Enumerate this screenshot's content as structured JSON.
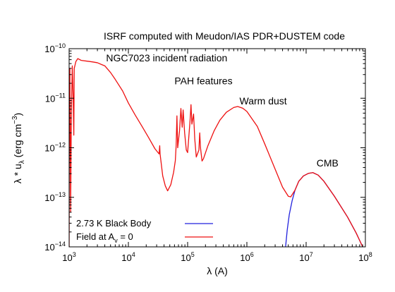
{
  "chart_data": {
    "type": "line",
    "title": "ISRF computed with Meudon/IAS PDR+DUSTEM code",
    "xlabel": "λ (A)",
    "ylabel_parts": {
      "main": "λ * u",
      "sub": "λ",
      "unit_pre": " (erg cm",
      "unit_sup": "−3",
      "unit_post": ")"
    },
    "x_scale": "log",
    "y_scale": "log",
    "xlim": [
      1000,
      100000000
    ],
    "ylim": [
      1e-14,
      1e-10
    ],
    "x_ticks": [
      {
        "value": 1000,
        "base": "10",
        "exp": "3"
      },
      {
        "value": 10000,
        "base": "10",
        "exp": "4"
      },
      {
        "value": 100000,
        "base": "10",
        "exp": "5"
      },
      {
        "value": 1000000,
        "base": "10",
        "exp": "6"
      },
      {
        "value": 10000000,
        "base": "10",
        "exp": "7"
      },
      {
        "value": 100000000,
        "base": "10",
        "exp": "8"
      }
    ],
    "y_ticks": [
      {
        "value": 1e-14,
        "base": "10",
        "exp": "−14"
      },
      {
        "value": 1e-13,
        "base": "10",
        "exp": "−13"
      },
      {
        "value": 1e-12,
        "base": "10",
        "exp": "−12"
      },
      {
        "value": 1e-11,
        "base": "10",
        "exp": "−11"
      },
      {
        "value": 1e-10,
        "base": "10",
        "exp": "−10"
      }
    ],
    "grid": false,
    "legend_position": "bottom-left",
    "series": [
      {
        "name": "2.73 K Black Body",
        "color": "#2222dd",
        "points": [
          [
            4500000,
            1e-14
          ],
          [
            4800000,
            2.2e-14
          ],
          [
            5200000,
            4.5e-14
          ],
          [
            5800000,
            8.5e-14
          ],
          [
            6500000,
            1.4e-13
          ],
          [
            7500000,
            2.1e-13
          ],
          [
            9000000,
            2.7e-13
          ],
          [
            11000000,
            3.05e-13
          ],
          [
            13000000,
            3.15e-13
          ],
          [
            16000000,
            2.8e-13
          ],
          [
            20000000,
            2.1e-13
          ],
          [
            30000000,
            1.05e-13
          ],
          [
            50000000,
            4e-14
          ],
          [
            70000000,
            1.9e-14
          ],
          [
            90000000,
            1e-14
          ]
        ]
      },
      {
        "name": "Field at A_v = 0",
        "legend_main": "Field at A",
        "legend_sub": "v",
        "legend_post": " = 0",
        "color": "#ee1111",
        "points": [
          [
            1000,
            1e-14
          ],
          [
            1010,
            4e-12
          ],
          [
            1030,
            4e-11
          ],
          [
            1060,
            5e-14
          ],
          [
            1090,
            5e-12
          ],
          [
            1130,
            4.5e-11
          ],
          [
            1170,
            1e-11
          ],
          [
            1200,
            1.8e-12
          ],
          [
            1220,
            4e-11
          ],
          [
            1300,
            5.5e-11
          ],
          [
            1400,
            6.3e-11
          ],
          [
            1600,
            5.8e-11
          ],
          [
            2000,
            5.6e-11
          ],
          [
            2500,
            5.4e-11
          ],
          [
            3000,
            5.2e-11
          ],
          [
            3500,
            4.8e-11
          ],
          [
            4000,
            4.5e-11
          ],
          [
            5000,
            3.3e-11
          ],
          [
            6000,
            2.4e-11
          ],
          [
            8000,
            1.4e-11
          ],
          [
            10000,
            8e-12
          ],
          [
            13000,
            4.6e-12
          ],
          [
            17000,
            2.7e-12
          ],
          [
            22000,
            1.6e-12
          ],
          [
            28000,
            9.6e-13
          ],
          [
            33000,
            7.5e-13
          ],
          [
            33800,
            1.1e-12
          ],
          [
            34300,
            7.5e-13
          ],
          [
            38000,
            2.7e-13
          ],
          [
            42000,
            1.7e-13
          ],
          [
            46000,
            1.35e-13
          ],
          [
            52000,
            1.8e-13
          ],
          [
            58000,
            3.2e-13
          ],
          [
            62000,
            5.5e-13
          ],
          [
            64000,
            1.1e-12
          ],
          [
            66000,
            4.4e-12
          ],
          [
            68000,
            1e-12
          ],
          [
            73000,
            2.2e-12
          ],
          [
            77000,
            6.2e-12
          ],
          [
            81000,
            2.6e-12
          ],
          [
            84000,
            5.8e-12
          ],
          [
            89000,
            2e-12
          ],
          [
            95000,
            9e-13
          ],
          [
            100000,
            8e-13
          ],
          [
            110000,
            3.6e-12
          ],
          [
            114000,
            7.4e-12
          ],
          [
            118000,
            3e-12
          ],
          [
            126000,
            4.8e-12
          ],
          [
            132000,
            1.5e-12
          ],
          [
            140000,
            6.5e-13
          ],
          [
            155000,
            9e-13
          ],
          [
            160000,
            2e-12
          ],
          [
            165000,
            1e-12
          ],
          [
            175000,
            5.4e-13
          ],
          [
            185000,
            6e-13
          ],
          [
            220000,
            1.1e-12
          ],
          [
            280000,
            2.2e-12
          ],
          [
            350000,
            3.6e-12
          ],
          [
            450000,
            5.2e-12
          ],
          [
            600000,
            6.5e-12
          ],
          [
            700000,
            6.8e-12
          ],
          [
            850000,
            6.3e-12
          ],
          [
            1000000,
            5.4e-12
          ],
          [
            1500000,
            2.7e-12
          ],
          [
            2000000,
            1.2e-12
          ],
          [
            3000000,
            3.7e-13
          ],
          [
            4000000,
            1.6e-13
          ],
          [
            5000000,
            1.05e-13
          ],
          [
            5500000,
            1.02e-13
          ],
          [
            6500000,
            1.4e-13
          ],
          [
            7500000,
            2.1e-13
          ],
          [
            9000000,
            2.7e-13
          ],
          [
            11000000,
            3.05e-13
          ],
          [
            13000000,
            3.15e-13
          ],
          [
            16000000,
            2.8e-13
          ],
          [
            20000000,
            2.1e-13
          ],
          [
            30000000,
            1.05e-13
          ],
          [
            50000000,
            4e-14
          ],
          [
            70000000,
            1.9e-14
          ],
          [
            90000000,
            1e-14
          ]
        ]
      }
    ],
    "annotations": [
      {
        "text": "NGC7023 incident radiation",
        "x": 4200,
        "y": 5.5e-11
      },
      {
        "text": "PAH features",
        "x": 60000,
        "y": 1.9e-11
      },
      {
        "text": "Warm dust",
        "x": 750000,
        "y": 7.5e-12
      },
      {
        "text": "CMB",
        "x": 15000000,
        "y": 4.2e-13
      }
    ]
  }
}
